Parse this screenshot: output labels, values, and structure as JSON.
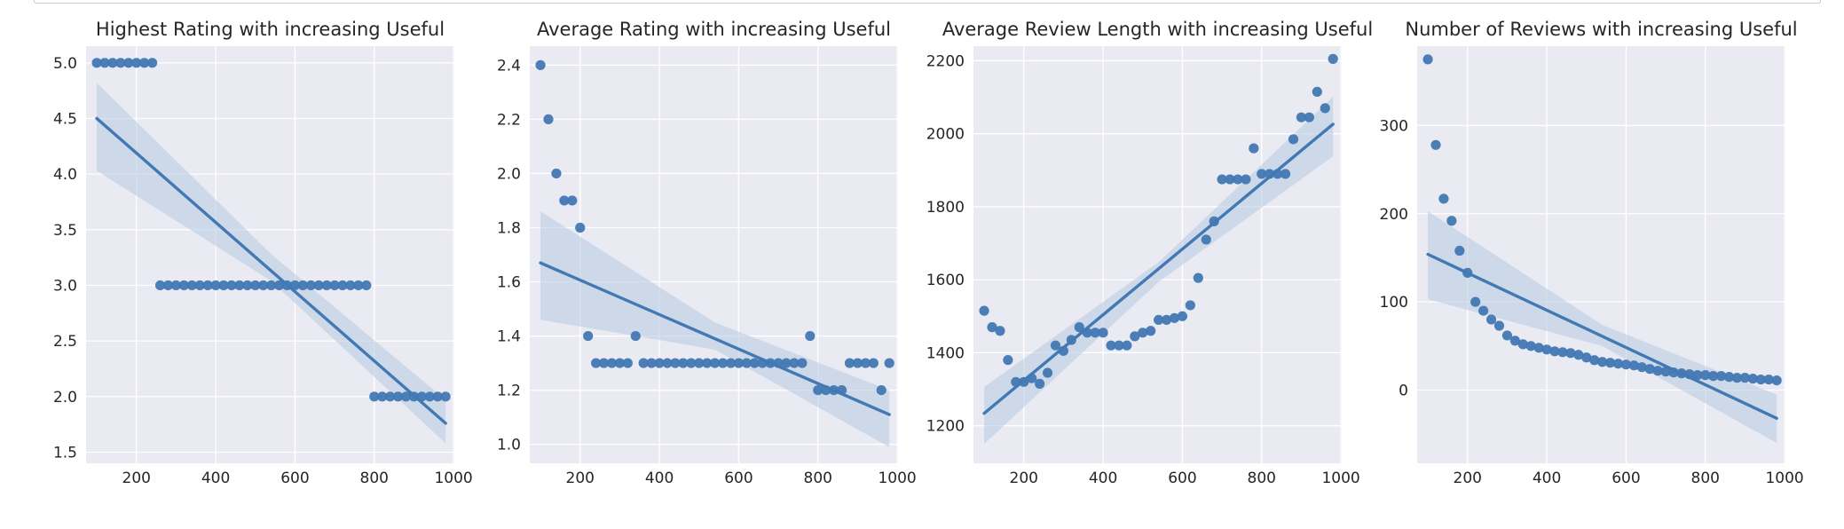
{
  "chart_data": [
    {
      "type": "scatter",
      "title": "Highest Rating with increasing Useful",
      "xlabel": "",
      "ylabel": "",
      "xlim": [
        73,
        1002
      ],
      "ylim": [
        1.4,
        5.15
      ],
      "xticks": [
        200,
        400,
        600,
        800,
        1000
      ],
      "yticks": [
        1.5,
        2.0,
        2.5,
        3.0,
        3.5,
        4.0,
        4.5,
        5.0
      ],
      "ytick_labels": [
        "1.5",
        "2.0",
        "2.5",
        "3.0",
        "3.5",
        "4.0",
        "4.5",
        "5.0"
      ],
      "grid": true,
      "marker_color": "#4278b3",
      "band_color": "#b9cde3",
      "points": [
        [
          100,
          5.0
        ],
        [
          120,
          5.0
        ],
        [
          140,
          5.0
        ],
        [
          160,
          5.0
        ],
        [
          180,
          5.0
        ],
        [
          200,
          5.0
        ],
        [
          220,
          5.0
        ],
        [
          240,
          5.0
        ],
        [
          260,
          3.0
        ],
        [
          280,
          3.0
        ],
        [
          300,
          3.0
        ],
        [
          320,
          3.0
        ],
        [
          340,
          3.0
        ],
        [
          360,
          3.0
        ],
        [
          380,
          3.0
        ],
        [
          400,
          3.0
        ],
        [
          420,
          3.0
        ],
        [
          440,
          3.0
        ],
        [
          460,
          3.0
        ],
        [
          480,
          3.0
        ],
        [
          500,
          3.0
        ],
        [
          520,
          3.0
        ],
        [
          540,
          3.0
        ],
        [
          560,
          3.0
        ],
        [
          580,
          3.0
        ],
        [
          600,
          3.0
        ],
        [
          620,
          3.0
        ],
        [
          640,
          3.0
        ],
        [
          660,
          3.0
        ],
        [
          680,
          3.0
        ],
        [
          700,
          3.0
        ],
        [
          720,
          3.0
        ],
        [
          740,
          3.0
        ],
        [
          760,
          3.0
        ],
        [
          780,
          3.0
        ],
        [
          800,
          2.0
        ],
        [
          820,
          2.0
        ],
        [
          840,
          2.0
        ],
        [
          860,
          2.0
        ],
        [
          880,
          2.0
        ],
        [
          900,
          2.0
        ],
        [
          920,
          2.0
        ],
        [
          940,
          2.0
        ],
        [
          960,
          2.0
        ],
        [
          980,
          2.0
        ]
      ],
      "fit": {
        "x": [
          100,
          980
        ],
        "y": [
          4.5,
          1.76
        ]
      },
      "band": {
        "x": [
          100,
          540,
          980
        ],
        "lower": [
          4.03,
          3.04,
          1.58
        ],
        "upper": [
          4.82,
          3.28,
          1.97
        ]
      }
    },
    {
      "type": "scatter",
      "title": "Average Rating with increasing Useful",
      "xlabel": "",
      "ylabel": "",
      "xlim": [
        73,
        1002
      ],
      "ylim": [
        0.93,
        2.47
      ],
      "xticks": [
        200,
        400,
        600,
        800,
        1000
      ],
      "yticks": [
        1.0,
        1.2,
        1.4,
        1.6,
        1.8,
        2.0,
        2.2,
        2.4
      ],
      "ytick_labels": [
        "1.0",
        "1.2",
        "1.4",
        "1.6",
        "1.8",
        "2.0",
        "2.2",
        "2.4"
      ],
      "grid": true,
      "marker_color": "#4278b3",
      "band_color": "#b9cde3",
      "points": [
        [
          100,
          2.4
        ],
        [
          120,
          2.2
        ],
        [
          140,
          2.0
        ],
        [
          160,
          1.9
        ],
        [
          180,
          1.9
        ],
        [
          200,
          1.8
        ],
        [
          220,
          1.4
        ],
        [
          240,
          1.3
        ],
        [
          260,
          1.3
        ],
        [
          280,
          1.3
        ],
        [
          300,
          1.3
        ],
        [
          320,
          1.3
        ],
        [
          340,
          1.4
        ],
        [
          360,
          1.3
        ],
        [
          380,
          1.3
        ],
        [
          400,
          1.3
        ],
        [
          420,
          1.3
        ],
        [
          440,
          1.3
        ],
        [
          460,
          1.3
        ],
        [
          480,
          1.3
        ],
        [
          500,
          1.3
        ],
        [
          520,
          1.3
        ],
        [
          540,
          1.3
        ],
        [
          560,
          1.3
        ],
        [
          580,
          1.3
        ],
        [
          600,
          1.3
        ],
        [
          620,
          1.3
        ],
        [
          640,
          1.3
        ],
        [
          660,
          1.3
        ],
        [
          680,
          1.3
        ],
        [
          700,
          1.3
        ],
        [
          720,
          1.3
        ],
        [
          740,
          1.3
        ],
        [
          760,
          1.3
        ],
        [
          780,
          1.4
        ],
        [
          800,
          1.2
        ],
        [
          820,
          1.2
        ],
        [
          840,
          1.2
        ],
        [
          860,
          1.2
        ],
        [
          880,
          1.3
        ],
        [
          900,
          1.3
        ],
        [
          920,
          1.3
        ],
        [
          940,
          1.3
        ],
        [
          960,
          1.2
        ],
        [
          980,
          1.3
        ]
      ],
      "fit": {
        "x": [
          100,
          980
        ],
        "y": [
          1.67,
          1.11
        ]
      },
      "band": {
        "x": [
          100,
          540,
          980
        ],
        "lower": [
          1.46,
          1.35,
          0.99
        ],
        "upper": [
          1.86,
          1.45,
          1.2
        ]
      }
    },
    {
      "type": "scatter",
      "title": "Average Review Length with increasing Useful",
      "xlabel": "",
      "ylabel": "",
      "xlim": [
        73,
        1002
      ],
      "ylim": [
        1097,
        2240
      ],
      "xticks": [
        200,
        400,
        600,
        800,
        1000
      ],
      "yticks": [
        1200,
        1400,
        1600,
        1800,
        2000,
        2200
      ],
      "ytick_labels": [
        "1200",
        "1400",
        "1600",
        "1800",
        "2000",
        "2200"
      ],
      "grid": true,
      "marker_color": "#4278b3",
      "band_color": "#b9cde3",
      "points": [
        [
          100,
          1515
        ],
        [
          120,
          1470
        ],
        [
          140,
          1460
        ],
        [
          160,
          1380
        ],
        [
          180,
          1320
        ],
        [
          200,
          1320
        ],
        [
          220,
          1330
        ],
        [
          240,
          1315
        ],
        [
          260,
          1345
        ],
        [
          280,
          1420
        ],
        [
          300,
          1405
        ],
        [
          320,
          1435
        ],
        [
          340,
          1470
        ],
        [
          360,
          1455
        ],
        [
          380,
          1455
        ],
        [
          400,
          1455
        ],
        [
          420,
          1420
        ],
        [
          440,
          1420
        ],
        [
          460,
          1420
        ],
        [
          480,
          1445
        ],
        [
          500,
          1455
        ],
        [
          520,
          1460
        ],
        [
          540,
          1490
        ],
        [
          560,
          1490
        ],
        [
          580,
          1495
        ],
        [
          600,
          1500
        ],
        [
          620,
          1530
        ],
        [
          640,
          1605
        ],
        [
          660,
          1710
        ],
        [
          680,
          1760
        ],
        [
          700,
          1875
        ],
        [
          720,
          1875
        ],
        [
          740,
          1875
        ],
        [
          760,
          1875
        ],
        [
          780,
          1960
        ],
        [
          800,
          1890
        ],
        [
          820,
          1890
        ],
        [
          840,
          1890
        ],
        [
          860,
          1890
        ],
        [
          880,
          1985
        ],
        [
          900,
          2045
        ],
        [
          920,
          2045
        ],
        [
          940,
          2115
        ],
        [
          960,
          2070
        ],
        [
          980,
          2205
        ]
      ],
      "fit": {
        "x": [
          100,
          980
        ],
        "y": [
          1234,
          2026
        ]
      },
      "band": {
        "x": [
          100,
          540,
          980
        ],
        "lower": [
          1150,
          1594,
          1938
        ],
        "upper": [
          1306,
          1648,
          2101
        ]
      }
    },
    {
      "type": "scatter",
      "title": "Number of Reviews with increasing Useful",
      "xlabel": "",
      "ylabel": "",
      "xlim": [
        73,
        1002
      ],
      "ylim": [
        -83,
        390
      ],
      "xticks": [
        200,
        400,
        600,
        800,
        1000
      ],
      "yticks": [
        0,
        100,
        200,
        300
      ],
      "ytick_labels": [
        "0",
        "100",
        "200",
        "300"
      ],
      "grid": true,
      "marker_color": "#4278b3",
      "band_color": "#b9cde3",
      "points": [
        [
          100,
          375
        ],
        [
          120,
          278
        ],
        [
          140,
          217
        ],
        [
          160,
          192
        ],
        [
          180,
          158
        ],
        [
          200,
          133
        ],
        [
          220,
          100
        ],
        [
          240,
          90
        ],
        [
          260,
          80
        ],
        [
          280,
          73
        ],
        [
          300,
          62
        ],
        [
          320,
          56
        ],
        [
          340,
          52
        ],
        [
          360,
          50
        ],
        [
          380,
          48
        ],
        [
          400,
          46
        ],
        [
          420,
          44
        ],
        [
          440,
          43
        ],
        [
          460,
          42
        ],
        [
          480,
          40
        ],
        [
          500,
          37
        ],
        [
          520,
          34
        ],
        [
          540,
          32
        ],
        [
          560,
          31
        ],
        [
          580,
          30
        ],
        [
          600,
          29
        ],
        [
          620,
          28
        ],
        [
          640,
          26
        ],
        [
          660,
          24
        ],
        [
          680,
          22
        ],
        [
          700,
          21
        ],
        [
          720,
          20
        ],
        [
          740,
          19
        ],
        [
          760,
          18
        ],
        [
          780,
          17
        ],
        [
          800,
          17
        ],
        [
          820,
          16
        ],
        [
          840,
          16
        ],
        [
          860,
          15
        ],
        [
          880,
          14
        ],
        [
          900,
          14
        ],
        [
          920,
          13
        ],
        [
          940,
          12
        ],
        [
          960,
          12
        ],
        [
          980,
          11
        ]
      ],
      "fit": {
        "x": [
          100,
          980
        ],
        "y": [
          154,
          -32
        ]
      },
      "band": {
        "x": [
          100,
          540,
          980
        ],
        "lower": [
          103,
          50,
          -60
        ],
        "upper": [
          203,
          74,
          -5
        ]
      }
    }
  ]
}
